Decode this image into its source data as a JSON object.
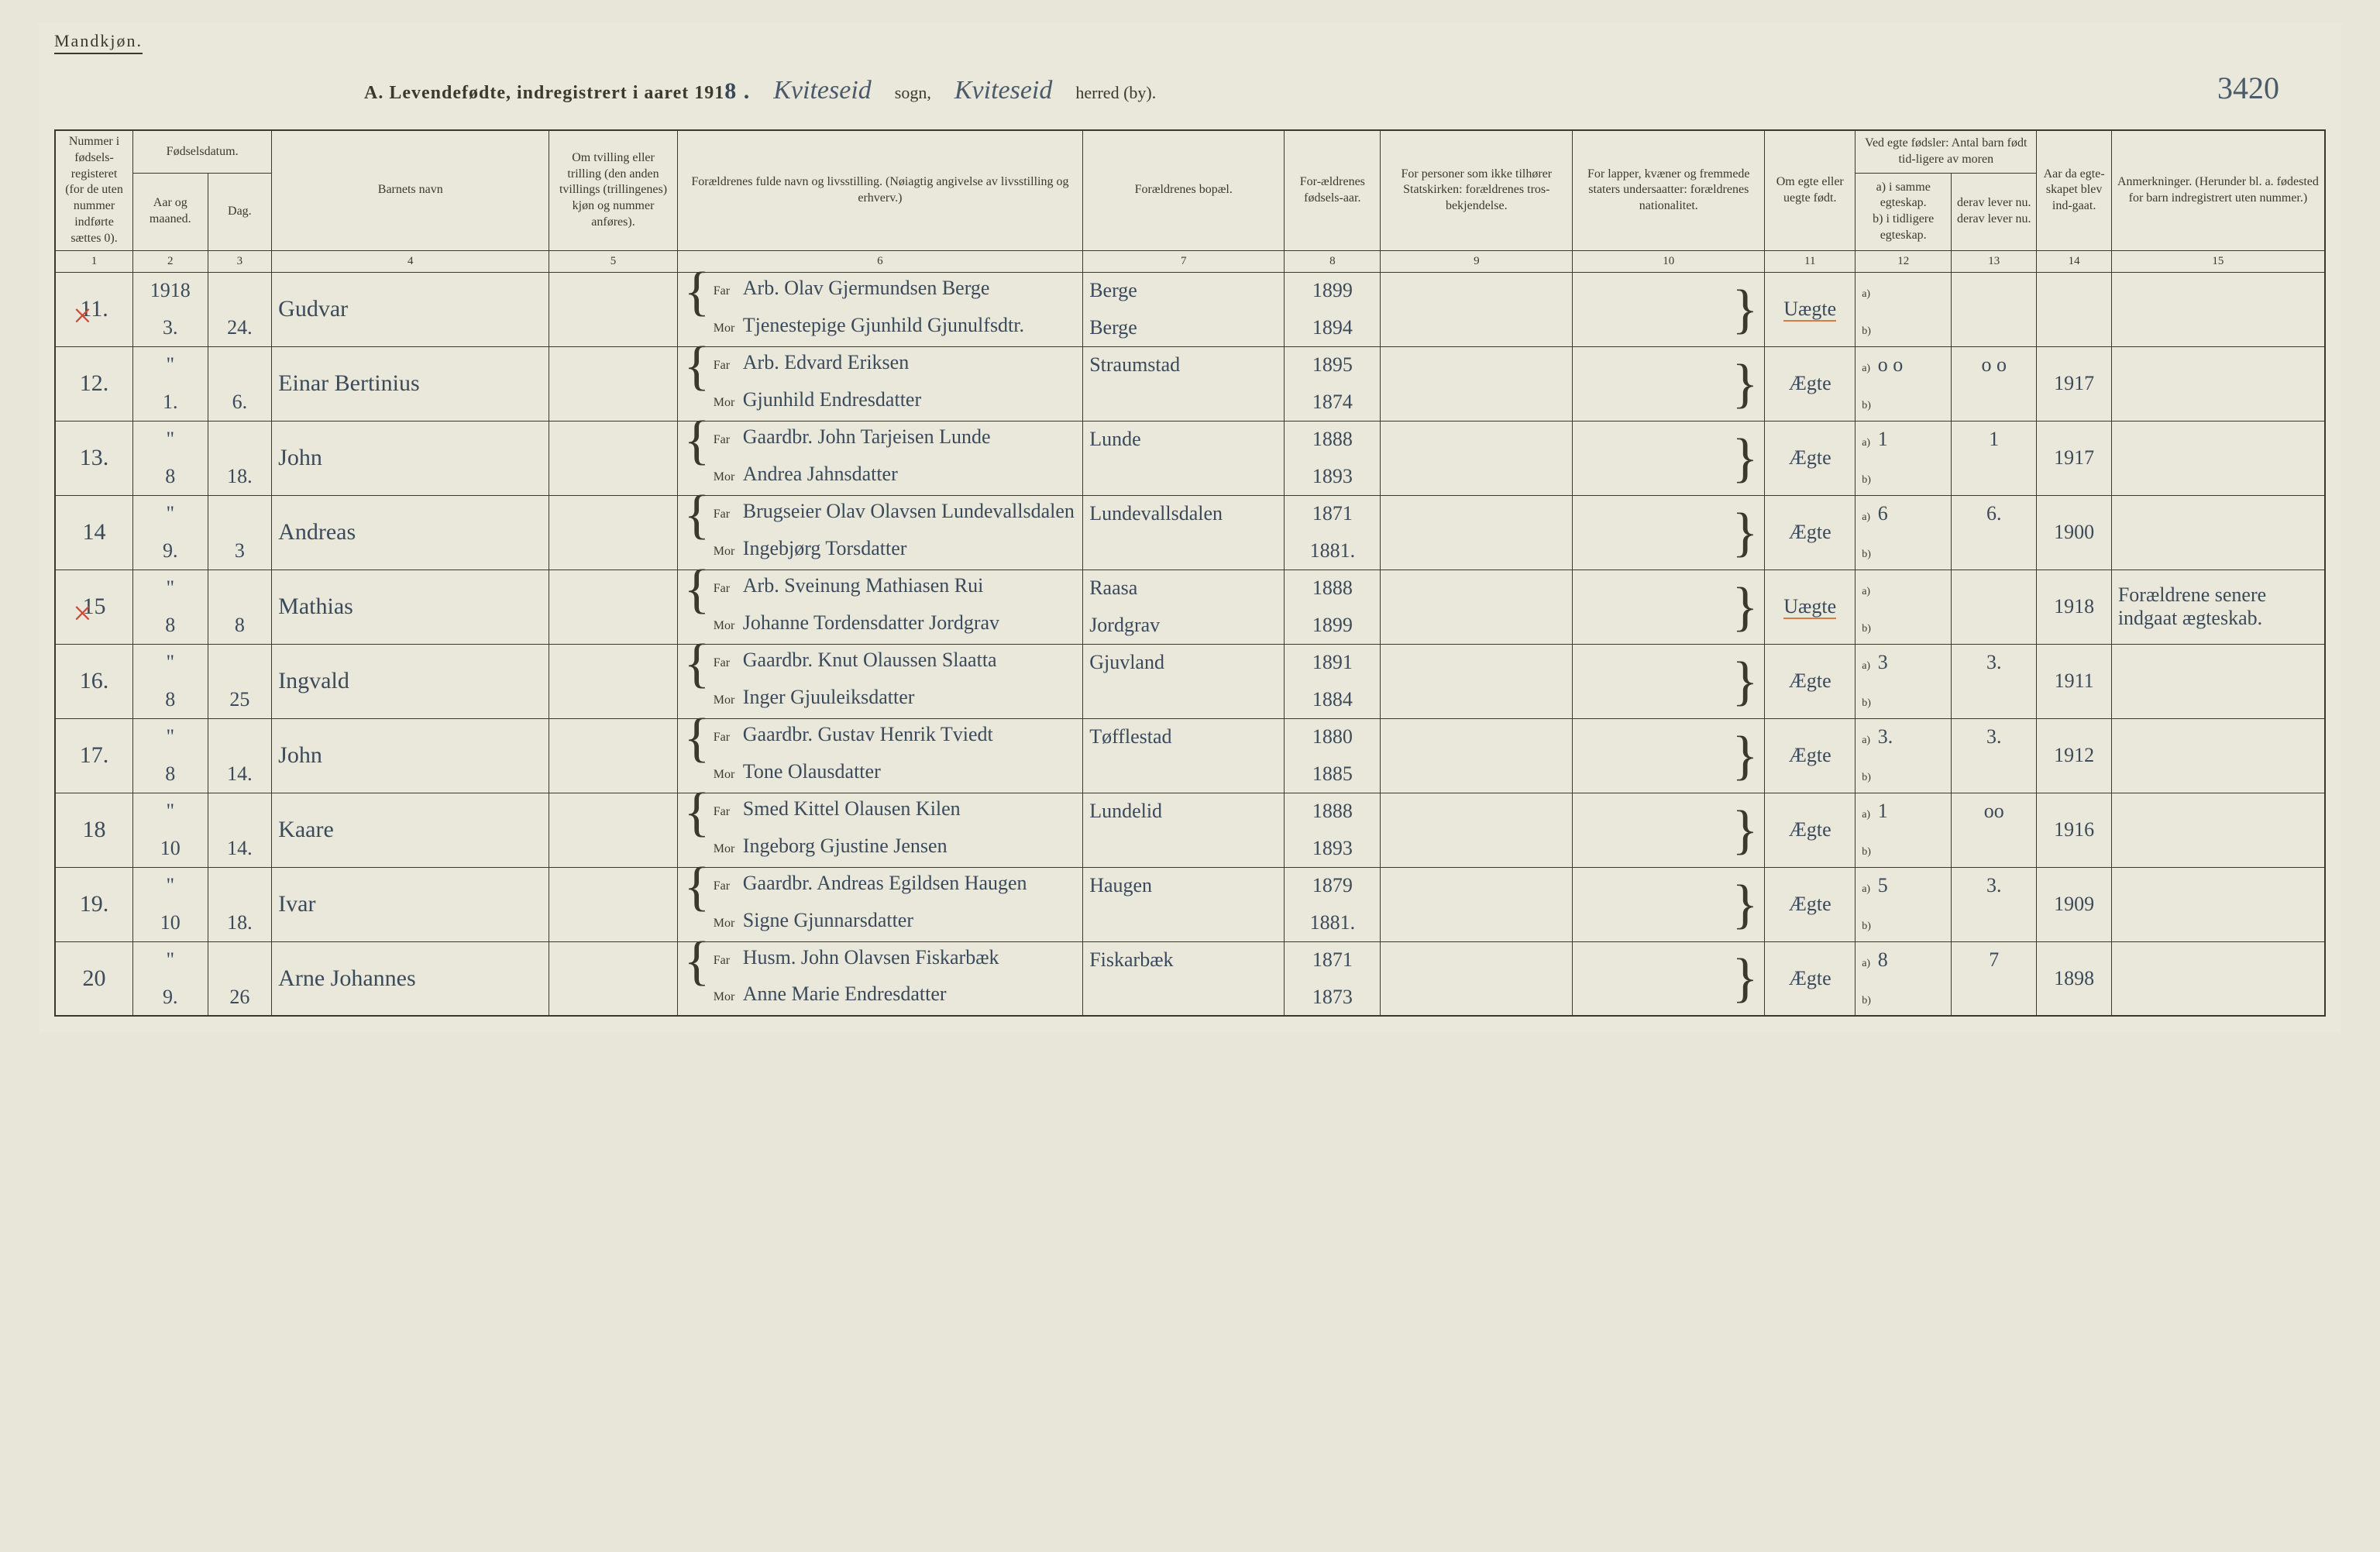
{
  "header": {
    "gender_label": "Mandkjøn.",
    "title_prefix": "A. Levendefødte, indregistrert i aaret 191",
    "year_suffix": "8 .",
    "sogn_value": "Kviteseid",
    "sogn_label": "sogn,",
    "herred_value": "Kviteseid",
    "herred_label": "herred (by).",
    "page_number": "3420"
  },
  "columns": {
    "c1": "Nummer i fødsels-registeret (for de uten nummer indførte sættes 0).",
    "c2_top": "Fødselsdatum.",
    "c2a": "Aar og maaned.",
    "c2b": "Dag.",
    "c4": "Barnets navn",
    "c5": "Om tvilling eller trilling (den anden tvillings (trillingenes) kjøn og nummer anføres).",
    "c6": "Forældrenes fulde navn og livsstilling. (Nøiagtig angivelse av livsstilling og erhverv.)",
    "c7": "Forældrenes bopæl.",
    "c8": "For-ældrenes fødsels-aar.",
    "c9": "For personer som ikke tilhører Statskirken: forældrenes tros-bekjendelse.",
    "c10": "For lapper, kvæner og fremmede staters undersaatter: forældrenes nationalitet.",
    "c11": "Om egte eller uegte født.",
    "c12_top": "Ved egte fødsler: Antal barn født tid-ligere av moren",
    "c12a": "a) i samme egteskap.",
    "c12b": "b) i tidligere egteskap.",
    "c13a": "derav lever nu.",
    "c13b": "derav lever nu.",
    "c14": "Aar da egte-skapet blev ind-gaat.",
    "c15": "Anmerkninger. (Herunder bl. a. fødested for barn indregistrert uten nummer.)"
  },
  "colnums": [
    "1",
    "2",
    "3",
    "4",
    "5",
    "6",
    "7",
    "8",
    "9",
    "10",
    "11",
    "12",
    "13",
    "14",
    "15"
  ],
  "parent_labels": {
    "far": "Far",
    "mor": "Mor"
  },
  "ab": {
    "a": "a)",
    "b": "b)"
  },
  "rows": [
    {
      "num": "11.",
      "redx": true,
      "year_note": "1918",
      "month": "3.",
      "day": "24.",
      "name": "Gudvar",
      "far": "Arb. Olav Gjermundsen Berge",
      "mor": "Tjenestepige Gjunhild Gjunulfsdtr.",
      "bopel": "Berge",
      "bopel2": "Berge",
      "far_aar": "1899",
      "mor_aar": "1894",
      "egte": "Uægte",
      "egte_red": true,
      "a": "",
      "b": "",
      "lever_a": "",
      "lever_b": "",
      "egteskap_aar": "",
      "anm": ""
    },
    {
      "num": "12.",
      "redx": false,
      "year_note": "\"",
      "month": "1.",
      "day": "6.",
      "name": "Einar Bertinius",
      "far": "Arb. Edvard Eriksen",
      "mor": "Gjunhild Endresdatter",
      "bopel": "Straumstad",
      "bopel2": "",
      "far_aar": "1895",
      "mor_aar": "1874",
      "egte": "Ægte",
      "egte_red": false,
      "a": "o o",
      "b": "",
      "lever_a": "o o",
      "lever_b": "",
      "egteskap_aar": "1917",
      "anm": ""
    },
    {
      "num": "13.",
      "redx": false,
      "year_note": "\"",
      "month": "8",
      "day": "18.",
      "name": "John",
      "far": "Gaardbr. John Tarjeisen Lunde",
      "mor": "Andrea Jahnsdatter",
      "bopel": "Lunde",
      "bopel2": "",
      "far_aar": "1888",
      "mor_aar": "1893",
      "egte": "Ægte",
      "egte_red": false,
      "a": "1",
      "b": "",
      "lever_a": "1",
      "lever_b": "",
      "egteskap_aar": "1917",
      "anm": ""
    },
    {
      "num": "14",
      "redx": false,
      "year_note": "\"",
      "month": "9.",
      "day": "3",
      "name": "Andreas",
      "far": "Brugseier Olav Olavsen Lundevallsdalen",
      "mor": "Ingebjørg Torsdatter",
      "bopel": "Lundevallsdalen",
      "bopel2": "",
      "far_aar": "1871",
      "mor_aar": "1881.",
      "egte": "Ægte",
      "egte_red": false,
      "a": "6",
      "b": "",
      "lever_a": "6.",
      "lever_b": "",
      "egteskap_aar": "1900",
      "anm": ""
    },
    {
      "num": "15",
      "redx": true,
      "year_note": "\"",
      "month": "8",
      "day": "8",
      "name": "Mathias",
      "far": "Arb. Sveinung Mathiasen Rui",
      "mor": "Johanne Tordensdatter Jordgrav",
      "bopel": "Raasa",
      "bopel2": "Jordgrav",
      "far_aar": "1888",
      "mor_aar": "1899",
      "egte": "Uægte",
      "egte_red": true,
      "a": "",
      "b": "",
      "lever_a": "",
      "lever_b": "",
      "egteskap_aar": "1918",
      "anm": "Forældrene senere indgaat ægteskab."
    },
    {
      "num": "16.",
      "redx": false,
      "year_note": "\"",
      "month": "8",
      "day": "25",
      "name": "Ingvald",
      "far": "Gaardbr. Knut Olaussen Slaatta",
      "mor": "Inger Gjuuleiksdatter",
      "bopel": "Gjuvland",
      "bopel2": "",
      "far_aar": "1891",
      "mor_aar": "1884",
      "egte": "Ægte",
      "egte_red": false,
      "a": "3",
      "b": "",
      "lever_a": "3.",
      "lever_b": "",
      "egteskap_aar": "1911",
      "anm": ""
    },
    {
      "num": "17.",
      "redx": false,
      "year_note": "\"",
      "month": "8",
      "day": "14.",
      "name": "John",
      "far": "Gaardbr. Gustav Henrik Tviedt",
      "mor": "Tone Olausdatter",
      "bopel": "Tøfflestad",
      "bopel2": "",
      "far_aar": "1880",
      "mor_aar": "1885",
      "egte": "Ægte",
      "egte_red": false,
      "a": "3.",
      "b": "",
      "lever_a": "3.",
      "lever_b": "",
      "egteskap_aar": "1912",
      "anm": ""
    },
    {
      "num": "18",
      "redx": false,
      "year_note": "\"",
      "month": "10",
      "day": "14.",
      "name": "Kaare",
      "far": "Smed Kittel Olausen Kilen",
      "mor": "Ingeborg Gjustine Jensen",
      "bopel": "Lundelid",
      "bopel2": "",
      "far_aar": "1888",
      "mor_aar": "1893",
      "egte": "Ægte",
      "egte_red": false,
      "a": "1",
      "b": "",
      "lever_a": "oo",
      "lever_b": "",
      "egteskap_aar": "1916",
      "anm": ""
    },
    {
      "num": "19.",
      "redx": false,
      "year_note": "\"",
      "month": "10",
      "day": "18.",
      "name": "Ivar",
      "far": "Gaardbr. Andreas Egildsen Haugen",
      "mor": "Signe Gjunnarsdatter",
      "bopel": "Haugen",
      "bopel2": "",
      "far_aar": "1879",
      "mor_aar": "1881.",
      "egte": "Ægte",
      "egte_red": false,
      "a": "5",
      "b": "",
      "lever_a": "3.",
      "lever_b": "",
      "egteskap_aar": "1909",
      "anm": ""
    },
    {
      "num": "20",
      "redx": false,
      "year_note": "\"",
      "month": "9.",
      "day": "26",
      "name": "Arne Johannes",
      "far": "Husm. John Olavsen Fiskarbæk",
      "mor": "Anne Marie Endresdatter",
      "bopel": "Fiskarbæk",
      "bopel2": "",
      "far_aar": "1871",
      "mor_aar": "1873",
      "egte": "Ægte",
      "egte_red": false,
      "a": "8",
      "b": "",
      "lever_a": "7",
      "lever_b": "",
      "egteskap_aar": "1898",
      "anm": ""
    }
  ],
  "style": {
    "bg": "#e8e6d8",
    "ink": "#3a3a2a",
    "hand_ink": "#3a4a5a",
    "red": "#c94a3a",
    "red_underline": "#d87a4a",
    "border_width_outer": 2.5,
    "border_width_inner": 1,
    "font_print": "Georgia, Times New Roman, serif",
    "font_hand": "Brush Script MT, cursive",
    "title_fontsize": 24,
    "header_fontsize": 16,
    "hand_fontsize": 30
  }
}
